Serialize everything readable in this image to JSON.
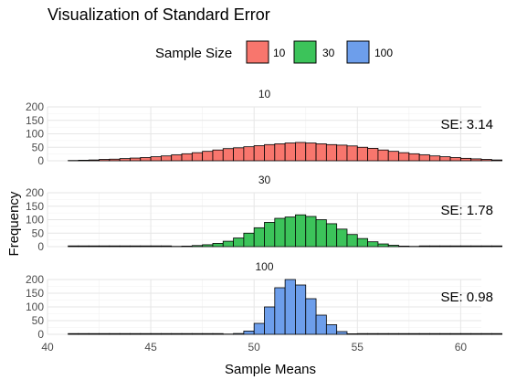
{
  "chart_data": {
    "type": "bar",
    "title": "Visualization of Standard Error",
    "xlabel": "Sample Means",
    "ylabel": "Frequency",
    "xlim": [
      40,
      61
    ],
    "ylim": [
      0,
      200
    ],
    "x_ticks": [
      "40",
      "45",
      "50",
      "55",
      "60"
    ],
    "y_ticks": [
      "0",
      "50",
      "100",
      "150",
      "200"
    ],
    "grid": true,
    "legend": {
      "title": "Sample Size",
      "position": "top",
      "entries": [
        {
          "label": "10",
          "color": "#F8766D"
        },
        {
          "label": "30",
          "color": "#3CC35A"
        },
        {
          "label": "100",
          "color": "#6D9EEB"
        }
      ]
    },
    "bin_width": 0.5,
    "bin_start": 41,
    "panels": [
      {
        "strip": "10",
        "se_label": "SE: 3.14",
        "color": "#F8766D",
        "values": [
          1,
          2,
          3,
          5,
          6,
          8,
          10,
          12,
          15,
          18,
          22,
          26,
          30,
          35,
          40,
          45,
          48,
          52,
          56,
          60,
          63,
          66,
          68,
          66,
          63,
          60,
          58,
          55,
          50,
          46,
          40,
          35,
          30,
          26,
          22,
          18,
          15,
          12,
          9,
          7,
          5,
          3
        ]
      },
      {
        "strip": "30",
        "se_label": "SE: 1.78",
        "color": "#3CC35A",
        "values": [
          0,
          0,
          0,
          0,
          0,
          0,
          0,
          0,
          0,
          0,
          1,
          2,
          4,
          7,
          12,
          20,
          32,
          50,
          70,
          90,
          105,
          110,
          118,
          112,
          100,
          85,
          65,
          45,
          30,
          18,
          10,
          5,
          2,
          1,
          0,
          0,
          0,
          0,
          0,
          0,
          0,
          0
        ]
      },
      {
        "strip": "100",
        "se_label": "SE: 0.98",
        "color": "#6D9EEB",
        "values": [
          0,
          0,
          0,
          0,
          0,
          0,
          0,
          0,
          0,
          0,
          0,
          0,
          0,
          0,
          0,
          1,
          3,
          12,
          40,
          100,
          170,
          200,
          180,
          130,
          70,
          35,
          10,
          2,
          0,
          0,
          0,
          0,
          0,
          0,
          0,
          0,
          0,
          0,
          0,
          0,
          0,
          0
        ]
      }
    ]
  }
}
